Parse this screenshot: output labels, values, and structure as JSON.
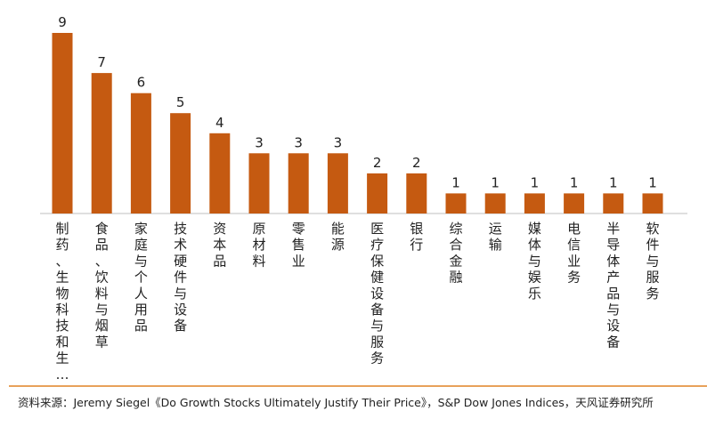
{
  "chart_data": {
    "type": "bar",
    "categories": [
      "制药、生物科技和生…",
      "食品、饮料与烟草",
      "家庭与个人用品",
      "技术硬件与设备",
      "资本品",
      "原材料",
      "零售业",
      "能源",
      "医疗保健设备与服务",
      "银行",
      "综合金融",
      "运输",
      "媒体与娱乐",
      "电信业务",
      "半导体产品与设备",
      "软件与服务"
    ],
    "values": [
      9,
      7,
      6,
      5,
      4,
      3,
      3,
      3,
      2,
      2,
      1,
      1,
      1,
      1,
      1,
      1
    ],
    "title": "",
    "xlabel": "",
    "ylabel": "",
    "ylim": [
      0,
      9
    ],
    "grid": false,
    "bar_color": "#c55a11",
    "axis_color": "#bfbfbf"
  },
  "source": "资料来源：Jeremy Siegel《Do Growth Stocks Ultimately Justify Their Price》，S&P Dow Jones Indices，天风证券研究所",
  "footer_line_color": "#e8a15a"
}
